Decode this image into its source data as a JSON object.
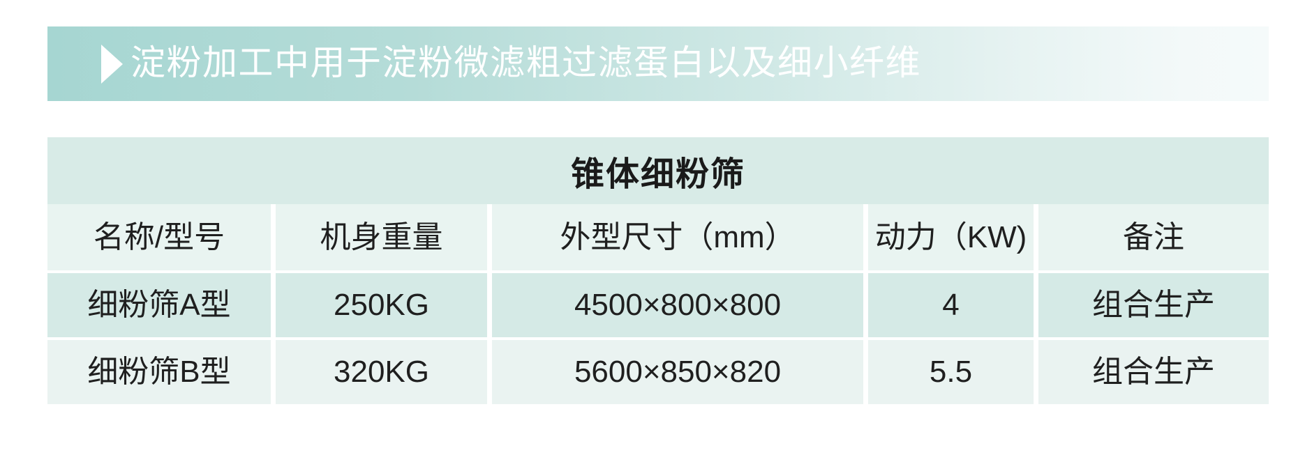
{
  "banner": {
    "title": "淀粉加工中用于淀粉微滤粗过滤蛋白以及细小纤维",
    "bullet_icon": "right-triangle-icon",
    "gradient_from": "#a6d6d2",
    "gradient_to": "#f5fafa",
    "text_color": "#ffffff"
  },
  "table": {
    "title": "锥体细粉筛",
    "columns": [
      "名称/型号",
      "机身重量",
      "外型尺寸（mm）",
      "动力（KW)",
      "备注"
    ],
    "rows": [
      [
        "细粉筛A型",
        "250KG",
        "4500×800×800",
        "4",
        "组合生产"
      ],
      [
        "细粉筛B型",
        "320KG",
        "5600×850×820",
        "5.5",
        "组合生产"
      ]
    ],
    "colors": {
      "title_row_bg": "#d8ebe7",
      "header_row_bg": "#e9f4f1",
      "odd_row_bg": "#d5eae6",
      "even_row_bg": "#eaf3f1",
      "text": "#1f1f1f"
    }
  }
}
